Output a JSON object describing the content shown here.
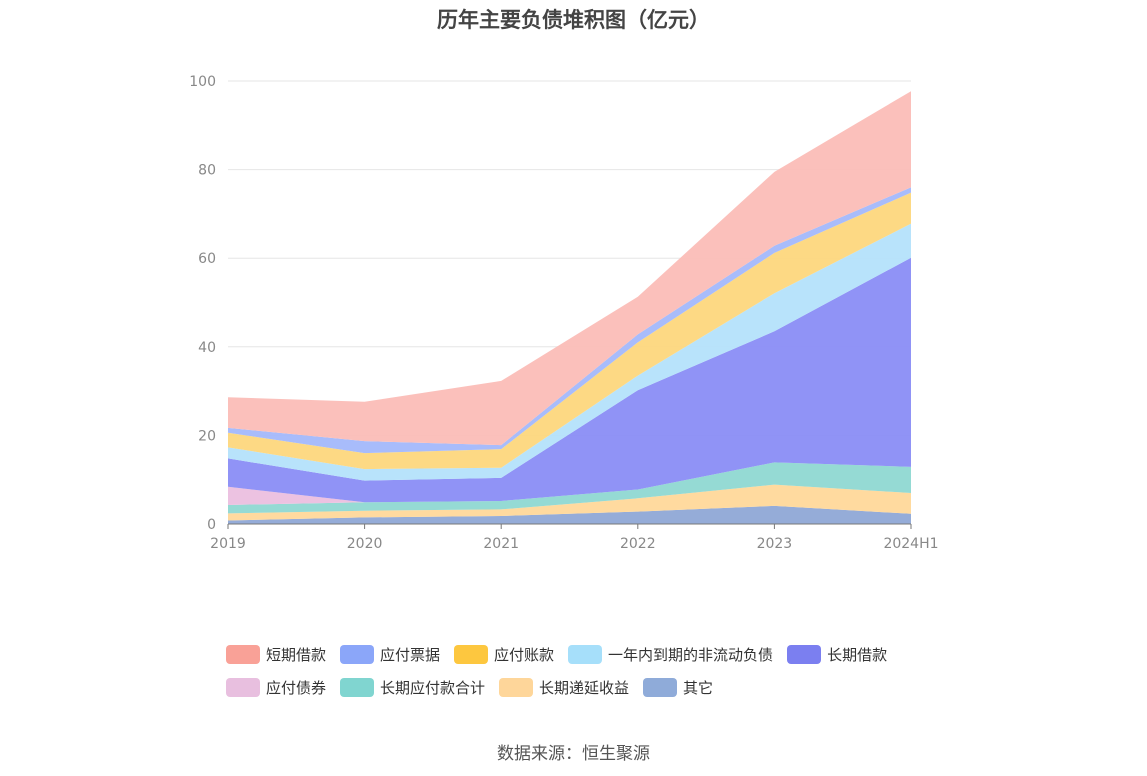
{
  "chart_data": {
    "type": "area",
    "stacked": true,
    "title": "历年主要负债堆积图（亿元）",
    "categories": [
      "2019",
      "2020",
      "2021",
      "2022",
      "2023",
      "2024H1"
    ],
    "ylim": [
      0,
      100
    ],
    "yticks": [
      0,
      20,
      40,
      60,
      80,
      100
    ],
    "legend_position": "bottom",
    "series": [
      {
        "name": "其它",
        "color": "#8fa8d6",
        "values": [
          0.8,
          1.5,
          1.8,
          2.8,
          4.1,
          2.3
        ]
      },
      {
        "name": "长期递延收益",
        "color": "#ffd89a",
        "values": [
          1.6,
          1.5,
          1.5,
          3.0,
          4.8,
          4.7
        ]
      },
      {
        "name": "长期应付款合计",
        "color": "#8fd8d2",
        "values": [
          1.9,
          1.9,
          1.9,
          2.0,
          5.0,
          5.9
        ]
      },
      {
        "name": "应付债券",
        "color": "#ebbfdf",
        "values": [
          4.1,
          0.0,
          0.0,
          0.0,
          0.0,
          0.0
        ]
      },
      {
        "name": "长期借款",
        "color": "#8a8df5",
        "values": [
          6.4,
          4.9,
          5.2,
          22.4,
          29.6,
          47.2
        ]
      },
      {
        "name": "一年内到期的非流动负债",
        "color": "#b4e2fb",
        "values": [
          2.5,
          2.6,
          2.3,
          3.3,
          8.6,
          7.7
        ]
      },
      {
        "name": "应付账款",
        "color": "#fdd77d",
        "values": [
          3.3,
          3.6,
          4.2,
          7.5,
          9.1,
          7.0
        ]
      },
      {
        "name": "应付票据",
        "color": "#a3b8fb",
        "values": [
          1.1,
          2.7,
          0.9,
          1.8,
          1.6,
          1.2
        ]
      },
      {
        "name": "短期借款",
        "color": "#fbbdb7",
        "values": [
          6.9,
          8.9,
          14.5,
          8.5,
          16.7,
          21.7
        ]
      }
    ]
  },
  "legend": {
    "row1": [
      {
        "name": "短期借款",
        "color": "#f9a197"
      },
      {
        "name": "应付票据",
        "color": "#8ba6f9"
      },
      {
        "name": "应付账款",
        "color": "#fdc73f"
      },
      {
        "name": "一年内到期的非流动负债",
        "color": "#a6dffa"
      },
      {
        "name": "长期借款",
        "color": "#7b7ff0"
      }
    ],
    "row2": [
      {
        "name": "应付债券",
        "color": "#e8bfdf"
      },
      {
        "name": "长期应付款合计",
        "color": "#80d5d0"
      },
      {
        "name": "长期递延收益",
        "color": "#fed69a"
      },
      {
        "name": "其它",
        "color": "#8fabd9"
      }
    ]
  },
  "source": "数据来源：恒生聚源"
}
